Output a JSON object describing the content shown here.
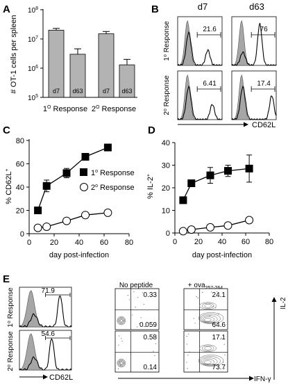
{
  "panel_letters": [
    "A",
    "B",
    "C",
    "D",
    "E"
  ],
  "chart_data": [
    {
      "panel": "A",
      "type": "bar",
      "ylabel": "# OT-1 cells per spleen",
      "yscale": "log",
      "ylim": [
        100000,
        100000000
      ],
      "yticks": [
        "10",
        "10",
        "10",
        "10"
      ],
      "ytick_exponents": [
        "5",
        "6",
        "7",
        "8"
      ],
      "categories": [
        "d7",
        "d63",
        "d7",
        "d63"
      ],
      "groups": [
        {
          "label": "1",
          "sup": "O",
          "rest": " Response"
        },
        {
          "label": "2",
          "sup": "O",
          "rest": " Response"
        }
      ],
      "values": [
        20000000,
        3000000,
        15000000,
        1300000
      ],
      "errors": [
        3000000,
        1600000,
        3000000,
        700000
      ],
      "bar_color": "#b3b3b3"
    },
    {
      "panel": "B",
      "type": "histogram",
      "columns": [
        "d7",
        "d63"
      ],
      "row_labels": [
        {
          "label": "1",
          "sup": "o",
          "rest": " Response"
        },
        {
          "label": "2",
          "sup": "o",
          "rest": " Response"
        }
      ],
      "xlabel": "CD62L",
      "gate_values": [
        [
          "21.6",
          "76"
        ],
        [
          "6.41",
          "17.4"
        ]
      ],
      "isotype_fill": "#a6a6a6"
    },
    {
      "panel": "C",
      "type": "line",
      "xlabel": "day post-infection",
      "ylabel_main": "% CD62L",
      "ylabel_sup": "+",
      "xlim": [
        0,
        80
      ],
      "ylim": [
        0,
        80
      ],
      "xticks": [
        "0",
        "20",
        "40",
        "60",
        "80"
      ],
      "yticks": [
        "0",
        "20",
        "40",
        "60",
        "80"
      ],
      "legend_position": "center-right",
      "x": [
        7,
        14,
        30,
        45,
        63
      ],
      "series": [
        {
          "name": "1",
          "sup": "o",
          "rest": " Response",
          "marker": "square-filled",
          "values": [
            20,
            41,
            52,
            66,
            74
          ],
          "errors": [
            2,
            5,
            4,
            2,
            2
          ]
        },
        {
          "name": "2",
          "sup": "o",
          "rest": " Response",
          "marker": "circle-open",
          "values": [
            5,
            6,
            11,
            16,
            18
          ],
          "errors": [
            1,
            1,
            1,
            1,
            1
          ]
        }
      ]
    },
    {
      "panel": "D",
      "type": "line",
      "xlabel": "day post-infection",
      "ylabel_main": "% IL-2",
      "ylabel_sup": "+",
      "xlim": [
        0,
        80
      ],
      "ylim": [
        0,
        40
      ],
      "xticks": [
        "0",
        "20",
        "40",
        "60",
        "80"
      ],
      "yticks": [
        "0",
        "10",
        "20",
        "30",
        "40"
      ],
      "x": [
        7,
        14,
        30,
        45,
        63
      ],
      "series": [
        {
          "name": "1 Response",
          "marker": "square-filled",
          "values": [
            14.5,
            22,
            25.5,
            27.5,
            28.5
          ],
          "errors": [
            1.2,
            1.2,
            3.5,
            2.5,
            6
          ]
        },
        {
          "name": "2 Response",
          "marker": "circle-open",
          "values": [
            0.8,
            1.5,
            2.5,
            3.3,
            5.7
          ],
          "errors": [
            0.3,
            0.3,
            0.3,
            0.3,
            0.3
          ]
        }
      ]
    },
    {
      "panel": "E",
      "type": "flow-cytometry",
      "row_labels": [
        {
          "label": "1",
          "sup": "o",
          "rest": " Response"
        },
        {
          "label": "2",
          "sup": "o",
          "rest": " Response"
        }
      ],
      "histogram_gate_values": [
        "71.9",
        "54.6"
      ],
      "histogram_xlabel": "CD62L",
      "columns": [
        {
          "label": "No peptide",
          "sub": "",
          "sub_label": ""
        },
        {
          "label": "+ ova",
          "sub": "257-264",
          "sub_label": ""
        }
      ],
      "contour_xlabel": "IFN-γ",
      "contour_ylabel": "IL-2",
      "quadrant_values": [
        {
          "top": "0.33",
          "bottom": "0.059"
        },
        {
          "top": "24.1",
          "bottom": "64.6"
        },
        {
          "top": "0.58",
          "bottom": "0.14"
        },
        {
          "top": "17.1",
          "bottom": "73.7"
        }
      ]
    }
  ]
}
